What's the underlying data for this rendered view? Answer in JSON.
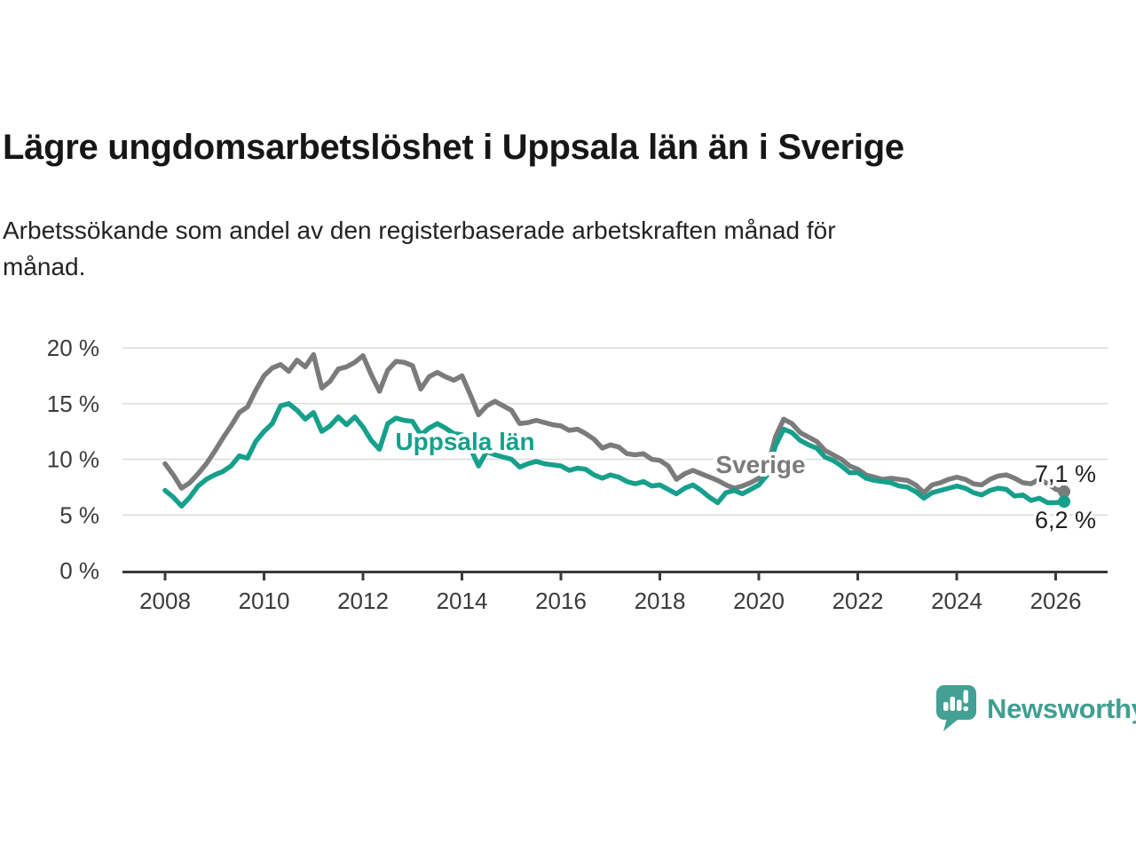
{
  "header": {
    "title": "Lägre ungdomsarbetslöshet i Uppsala län än i Sverige",
    "subtitle": "Arbetssökande som andel av den registerbaserade arbetskraften månad för månad.",
    "subtitle_lines": [
      "Arbetssökande som andel av den registerbaserade arbetskraften månad för",
      "månad."
    ]
  },
  "chart_data": {
    "type": "line",
    "title": "Lägre ungdomsarbetslöshet i Uppsala län än i Sverige",
    "xlabel": "",
    "ylabel": "",
    "x_start": 2008,
    "x_step_years": 0.1667,
    "x_note": "monthly share of registered labour force, sampled every 2 months 2008 - early 2026",
    "xlim": [
      2007.1,
      2027.1
    ],
    "ylim": [
      0,
      20
    ],
    "grid": "horizontal",
    "yticks": [
      {
        "value": 0,
        "label": "0 %"
      },
      {
        "value": 5,
        "label": "5 %"
      },
      {
        "value": 10,
        "label": "10 %"
      },
      {
        "value": 15,
        "label": "15 %"
      },
      {
        "value": 20,
        "label": "20 %"
      }
    ],
    "xticks": [
      {
        "value": 2008,
        "label": "2008"
      },
      {
        "value": 2010,
        "label": "2010"
      },
      {
        "value": 2012,
        "label": "2012"
      },
      {
        "value": 2014,
        "label": "2014"
      },
      {
        "value": 2016,
        "label": "2016"
      },
      {
        "value": 2018,
        "label": "2018"
      },
      {
        "value": 2020,
        "label": "2020"
      },
      {
        "value": 2022,
        "label": "2022"
      },
      {
        "value": 2024,
        "label": "2024"
      },
      {
        "value": 2026,
        "label": "2026"
      }
    ],
    "series": [
      {
        "name": "Sverige",
        "label": "Sverige",
        "color": "#7b7b7b",
        "end_label": "7,1 %",
        "end_value": 7.1,
        "label_pos": {
          "x": 857,
          "y": 533
        },
        "end_label_pos": {
          "x": 1166,
          "y": 543
        },
        "values": [
          9.6,
          8.6,
          7.4,
          7.9,
          8.7,
          9.6,
          10.7,
          11.9,
          13.0,
          14.2,
          14.7,
          16.2,
          17.5,
          18.2,
          18.5,
          17.9,
          18.9,
          18.3,
          19.4,
          16.4,
          17.0,
          18.1,
          18.3,
          18.7,
          19.3,
          17.6,
          16.1,
          18.0,
          18.8,
          18.7,
          18.4,
          16.3,
          17.4,
          17.8,
          17.4,
          17.1,
          17.5,
          15.8,
          14.0,
          14.8,
          15.2,
          14.8,
          14.4,
          13.2,
          13.3,
          13.5,
          13.3,
          13.1,
          13.0,
          12.6,
          12.7,
          12.3,
          11.8,
          11.0,
          11.3,
          11.1,
          10.5,
          10.4,
          10.5,
          10.0,
          9.9,
          9.4,
          8.2,
          8.7,
          9.0,
          8.7,
          8.4,
          8.1,
          7.7,
          7.4,
          7.6,
          7.9,
          8.3,
          9.2,
          12.0,
          13.6,
          13.2,
          12.4,
          12.0,
          11.6,
          10.8,
          10.4,
          10.0,
          9.4,
          9.1,
          8.6,
          8.4,
          8.2,
          8.3,
          8.2,
          8.1,
          7.7,
          7.0,
          7.7,
          7.9,
          8.2,
          8.4,
          8.2,
          7.8,
          7.7,
          8.2,
          8.5,
          8.6,
          8.3,
          7.9,
          7.8,
          8.2,
          7.8,
          7.3,
          7.1
        ]
      },
      {
        "name": "Uppsala län",
        "label": "Uppsala län",
        "color": "#16a08c",
        "end_label": "6,2 %",
        "end_value": 6.2,
        "label_pos": {
          "x": 524,
          "y": 507
        },
        "end_label_pos": {
          "x": 1166,
          "y": 595
        },
        "values": [
          7.2,
          6.6,
          5.8,
          6.6,
          7.6,
          8.2,
          8.6,
          8.9,
          9.4,
          10.3,
          10.1,
          11.6,
          12.5,
          13.2,
          14.8,
          15.0,
          14.4,
          13.6,
          14.2,
          12.5,
          13.0,
          13.8,
          13.1,
          13.8,
          12.9,
          11.7,
          10.9,
          13.2,
          13.7,
          13.5,
          13.4,
          12.2,
          12.8,
          13.2,
          12.8,
          12.3,
          12.2,
          11.0,
          9.4,
          10.7,
          10.4,
          10.2,
          10.0,
          9.3,
          9.6,
          9.8,
          9.6,
          9.5,
          9.4,
          9.0,
          9.2,
          9.1,
          8.6,
          8.3,
          8.6,
          8.4,
          8.0,
          7.8,
          8.0,
          7.6,
          7.7,
          7.3,
          6.9,
          7.4,
          7.7,
          7.2,
          6.6,
          6.1,
          7.0,
          7.2,
          6.9,
          7.3,
          7.7,
          8.6,
          11.2,
          12.7,
          12.4,
          11.7,
          11.3,
          11.0,
          10.2,
          9.9,
          9.4,
          8.8,
          8.8,
          8.3,
          8.1,
          8.0,
          7.9,
          7.6,
          7.5,
          7.1,
          6.5,
          7.0,
          7.2,
          7.4,
          7.6,
          7.4,
          7.0,
          6.8,
          7.2,
          7.4,
          7.3,
          6.7,
          6.8,
          6.3,
          6.5,
          6.1,
          6.1,
          6.2
        ]
      }
    ]
  },
  "footer": {
    "brand": "Newsworthy",
    "brand_color": "#3f9f92"
  }
}
